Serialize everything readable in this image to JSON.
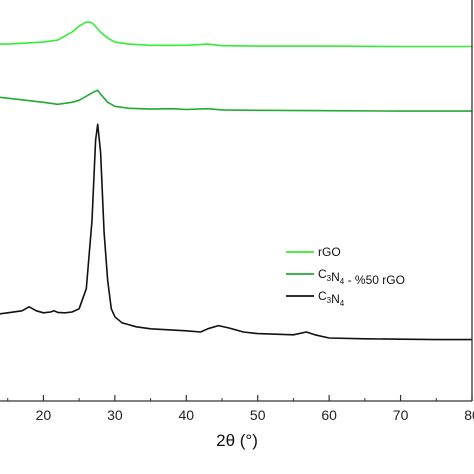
{
  "chart_data": {
    "type": "line",
    "xlabel": "2θ (°)",
    "ylabel": "",
    "xlim": [
      10,
      80
    ],
    "x_ticks": [
      "20",
      "30",
      "40",
      "50",
      "60",
      "70",
      "80"
    ],
    "x_tick_values": [
      20,
      30,
      40,
      50,
      60,
      70,
      80
    ],
    "y_ticks": [],
    "grid": false,
    "legend_position": "center-right",
    "series": [
      {
        "name": "rGO",
        "legend": {
          "base": "rGO",
          "parts": [
            [
              "rGO",
              ""
            ]
          ]
        },
        "color": "#33ee33",
        "x": [
          10,
          15,
          20,
          22,
          24,
          25,
          26,
          26.5,
          27,
          28,
          29,
          30,
          32,
          35,
          40,
          43,
          45,
          50,
          60,
          70,
          80
        ],
        "y": [
          0.89,
          0.89,
          0.895,
          0.9,
          0.92,
          0.935,
          0.945,
          0.945,
          0.94,
          0.92,
          0.905,
          0.895,
          0.89,
          0.887,
          0.887,
          0.89,
          0.886,
          0.885,
          0.885,
          0.884,
          0.884
        ]
      },
      {
        "name": "C3N4 - %50 rGO",
        "legend": {
          "parts": [
            [
              "C",
              "3"
            ],
            [
              "N",
              "4"
            ],
            [
              " - %50 rGO",
              ""
            ]
          ]
        },
        "color": "#22aa33",
        "x": [
          10,
          15,
          20,
          22,
          24,
          25,
          26,
          27,
          27.6,
          28,
          29,
          30,
          32,
          35,
          38,
          40,
          43,
          45,
          50,
          60,
          70,
          80
        ],
        "y": [
          0.765,
          0.755,
          0.745,
          0.74,
          0.745,
          0.75,
          0.76,
          0.77,
          0.775,
          0.765,
          0.745,
          0.735,
          0.73,
          0.728,
          0.729,
          0.727,
          0.729,
          0.726,
          0.725,
          0.724,
          0.723,
          0.723
        ]
      },
      {
        "name": "C3N4",
        "legend": {
          "parts": [
            [
              "C",
              "3"
            ],
            [
              "N",
              "4"
            ]
          ]
        },
        "color": "#111111",
        "x": [
          10,
          12,
          15,
          17,
          18,
          19,
          20,
          21,
          21.5,
          22,
          23,
          24,
          25,
          26,
          26.8,
          27.3,
          27.6,
          28,
          28.5,
          29,
          29.5,
          30,
          31,
          33,
          35,
          40,
          42,
          43,
          44.5,
          46,
          48,
          50,
          55,
          56.8,
          58,
          60,
          65,
          70,
          75,
          80
        ],
        "y": [
          0.21,
          0.213,
          0.22,
          0.225,
          0.235,
          0.225,
          0.22,
          0.222,
          0.225,
          0.221,
          0.22,
          0.222,
          0.23,
          0.28,
          0.45,
          0.65,
          0.69,
          0.62,
          0.42,
          0.3,
          0.23,
          0.21,
          0.195,
          0.185,
          0.18,
          0.175,
          0.172,
          0.18,
          0.188,
          0.182,
          0.172,
          0.168,
          0.165,
          0.172,
          0.165,
          0.157,
          0.155,
          0.154,
          0.153,
          0.153
        ]
      }
    ]
  },
  "colors": {
    "axis": "#333333",
    "background": "#ffffff"
  }
}
